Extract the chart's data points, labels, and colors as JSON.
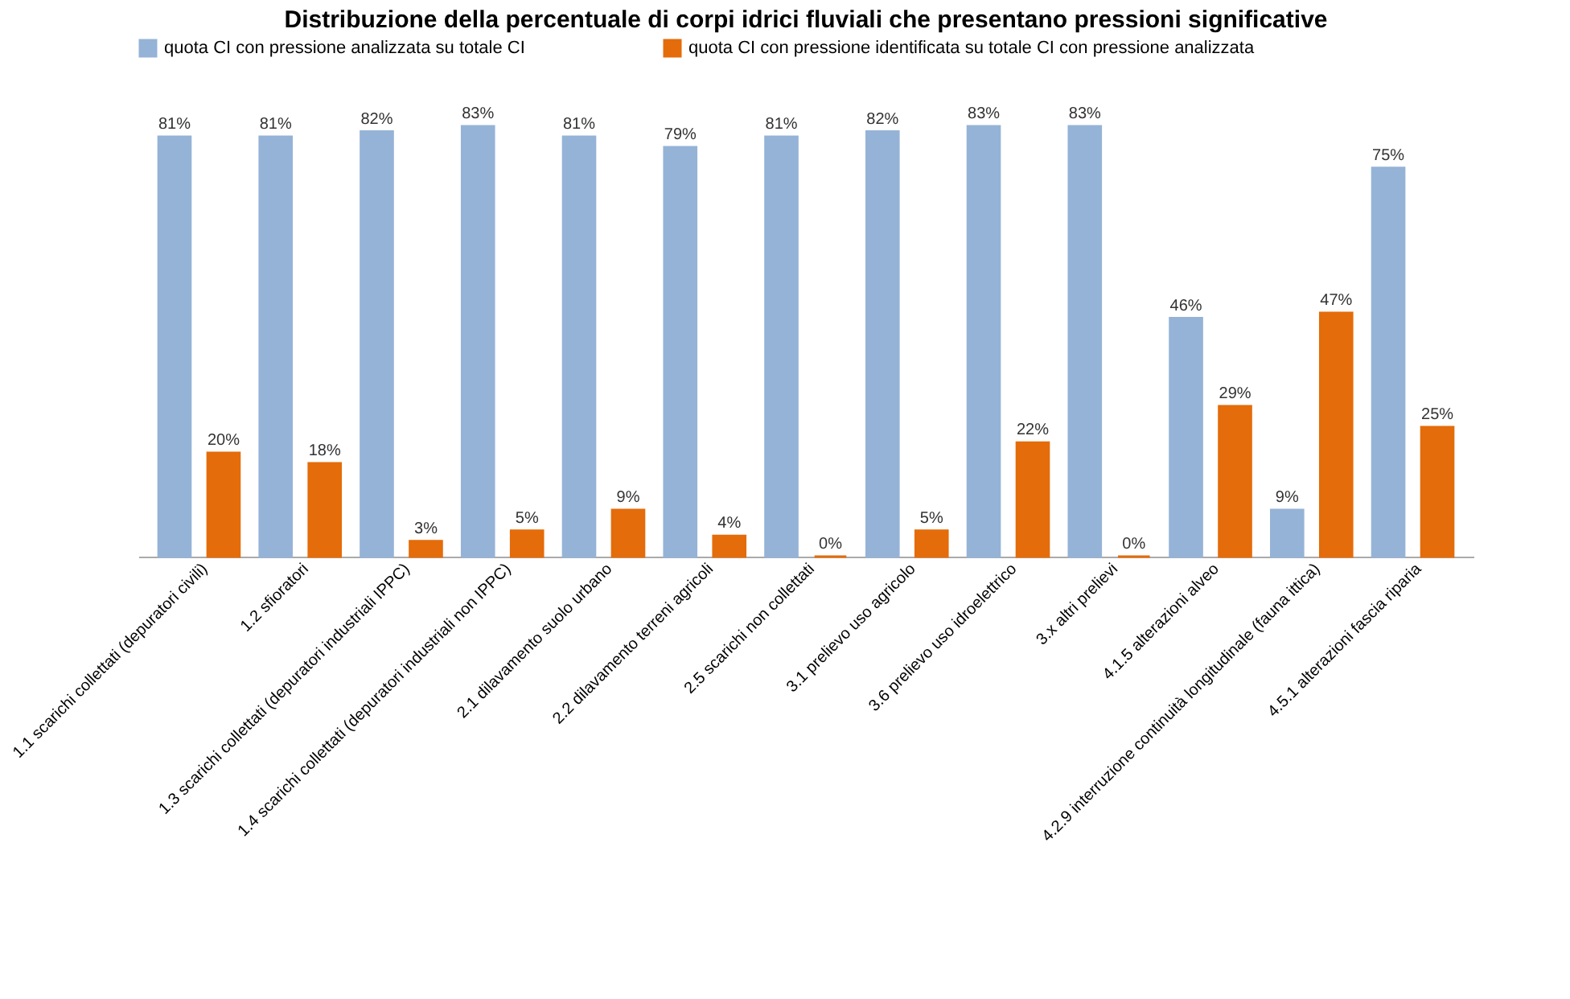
{
  "chart_data": {
    "type": "bar",
    "title": "Distribuzione della percentuale di corpi idrici fluviali che presentano pressioni significative",
    "categories": [
      "1.1 scarichi collettati (depuratori civili)",
      "1.2 sfioratori",
      "1.3 scarichi collettati (depuratori industriali IPPC)",
      "1.4 scarichi collettati (depuratori industriali non IPPC)",
      "2.1 dilavamento suolo urbano",
      "2.2 dilavamento terreni agricoli",
      "2.5 scarichi non collettati",
      "3.1 prelievo uso agricolo",
      "3.6 prelievo uso idroelettrico",
      "3.x altri prelievi",
      "4.1.5 alterazioni alveo",
      "4.2.9 interruzione continuità longitudinale (fauna ittica)",
      "4.5.1 alterazioni fascia riparia"
    ],
    "series": [
      {
        "name": "quota CI con pressione  analizzata su totale CI",
        "color": "#95b3d7",
        "values": [
          81,
          81,
          82,
          83,
          81,
          79,
          81,
          82,
          83,
          83,
          46,
          9,
          75
        ],
        "value_labels": [
          "81%",
          "81%",
          "82%",
          "83%",
          "81%",
          "79%",
          "81%",
          "82%",
          "83%",
          "83%",
          "46%",
          "9%",
          "75%"
        ]
      },
      {
        "name": "quota CI con pressione identificata su totale CI con pressione analizzata",
        "color": "#e46c0a",
        "values": [
          20,
          18,
          3,
          5,
          9,
          4,
          0,
          5,
          22,
          0,
          29,
          47,
          25
        ],
        "value_labels": [
          "20%",
          "18%",
          "3%",
          "5%",
          "9%",
          "4%",
          "0%",
          "5%",
          "22%",
          "0%",
          "29%",
          "47%",
          "25%"
        ]
      }
    ],
    "legend": "top left",
    "grid": false
  }
}
